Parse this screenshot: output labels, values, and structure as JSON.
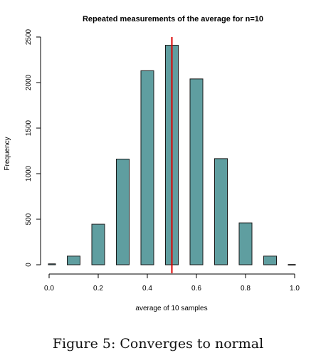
{
  "colors": {
    "bar_fill": "#5f9ea0",
    "bar_stroke": "#1a1a1a",
    "mean_line": "#dd0000"
  },
  "chart_data": {
    "type": "bar",
    "title": "Repeated measurements of the average for n=10",
    "xlabel": "average of 10 samples",
    "ylabel": "Frequency",
    "xlim": [
      0.0,
      1.0
    ],
    "ylim": [
      0,
      2500
    ],
    "xticks": [
      "0.0",
      "0.2",
      "0.4",
      "0.6",
      "0.8",
      "1.0"
    ],
    "yticks": [
      "0",
      "500",
      "1000",
      "1500",
      "2000",
      "2500"
    ],
    "bins": [
      {
        "x": 0.0,
        "value": 10
      },
      {
        "x": 0.1,
        "value": 95
      },
      {
        "x": 0.2,
        "value": 445
      },
      {
        "x": 0.3,
        "value": 1160
      },
      {
        "x": 0.4,
        "value": 2130
      },
      {
        "x": 0.5,
        "value": 2410
      },
      {
        "x": 0.6,
        "value": 2040
      },
      {
        "x": 0.7,
        "value": 1165
      },
      {
        "x": 0.8,
        "value": 460
      },
      {
        "x": 0.9,
        "value": 95
      },
      {
        "x": 1.0,
        "value": 3
      }
    ],
    "mean_line_x": 0.5,
    "grid": false
  },
  "caption": "Figure 5:  Converges to normal"
}
